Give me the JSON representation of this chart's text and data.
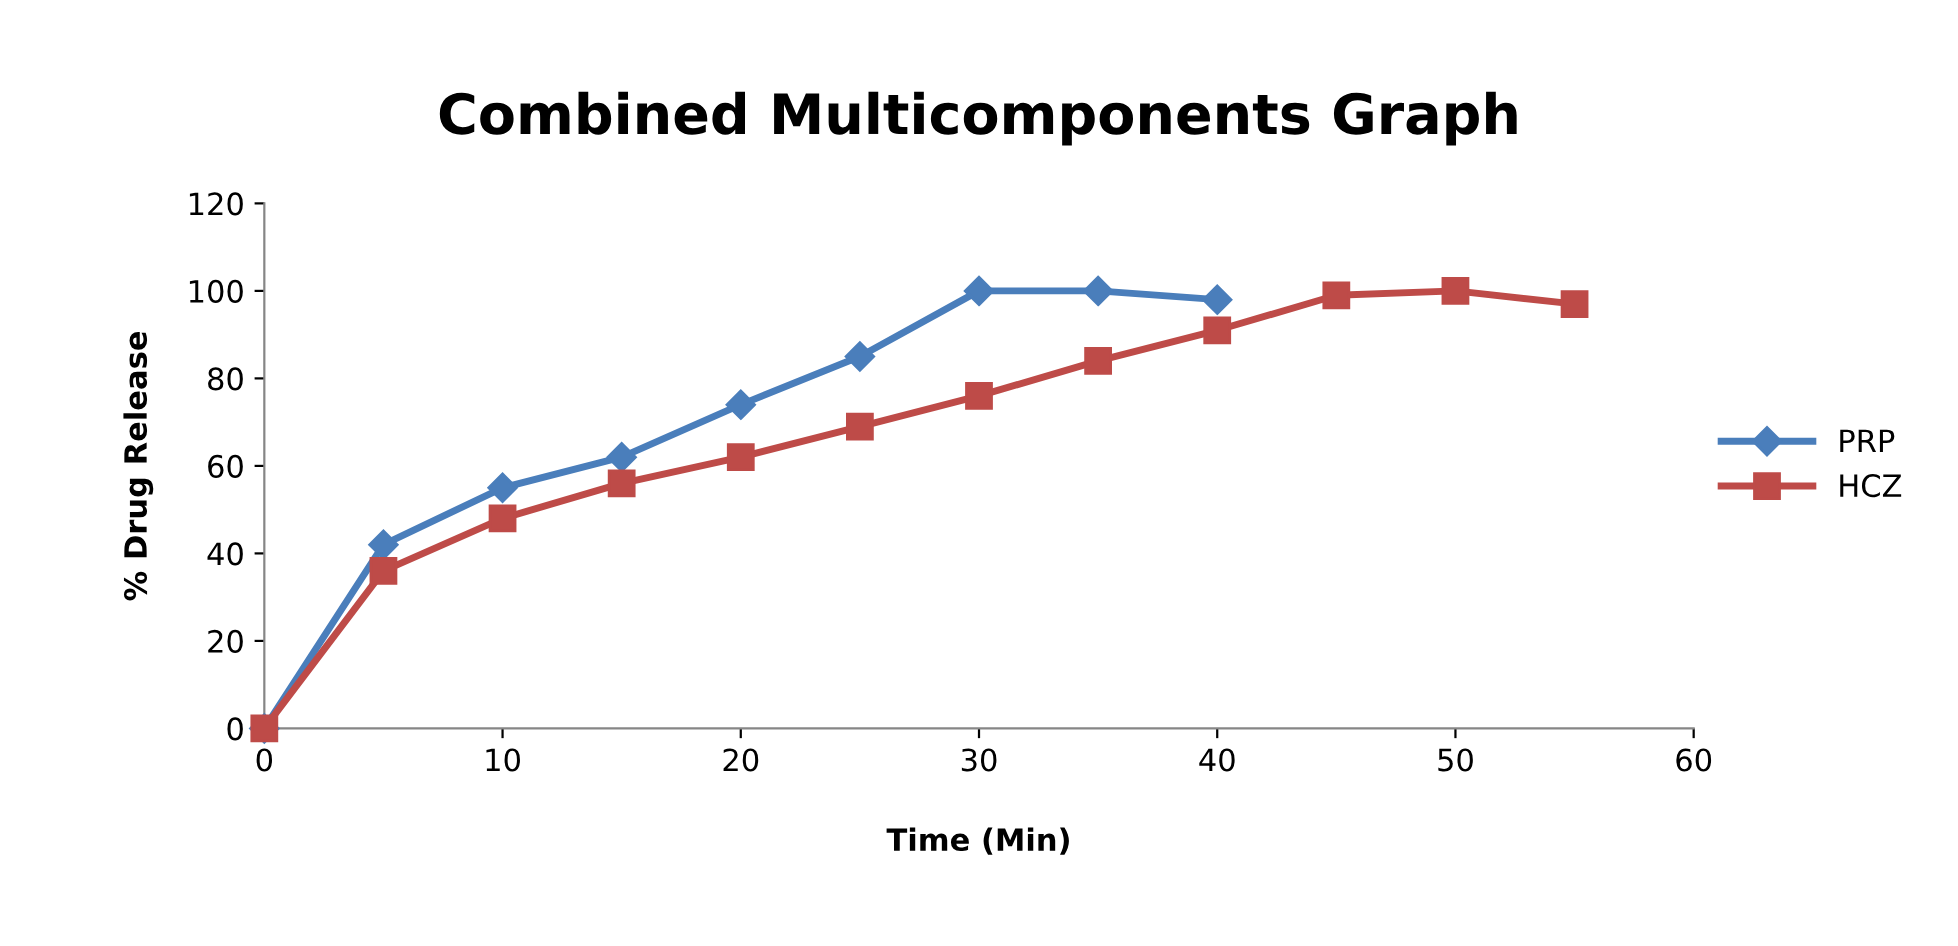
{
  "chart_data": {
    "type": "line",
    "title": "Combined Multicomponents Graph",
    "xlabel": "Time (Min)",
    "ylabel": "% Drug Release",
    "xlim": [
      0,
      60
    ],
    "xticks": [
      0,
      10,
      20,
      30,
      40,
      50,
      60
    ],
    "ylim": [
      0,
      120
    ],
    "yticks": [
      0,
      20,
      40,
      60,
      80,
      100,
      120
    ],
    "grid": false,
    "legend": "right",
    "line_style": "solid",
    "series": [
      {
        "name": "PRP",
        "color": "#4a7ebb",
        "marker": "diamond",
        "x": [
          0,
          5,
          10,
          15,
          20,
          25,
          30,
          35,
          40
        ],
        "values": [
          0,
          42,
          55,
          62,
          74,
          85,
          100,
          100,
          98
        ]
      },
      {
        "name": "HCZ",
        "color": "#be4b48",
        "marker": "square",
        "x": [
          0,
          5,
          10,
          15,
          20,
          25,
          30,
          35,
          40,
          45,
          50,
          55
        ],
        "values": [
          0,
          36,
          48,
          56,
          62,
          69,
          76,
          84,
          91,
          99,
          100,
          97
        ]
      }
    ]
  }
}
